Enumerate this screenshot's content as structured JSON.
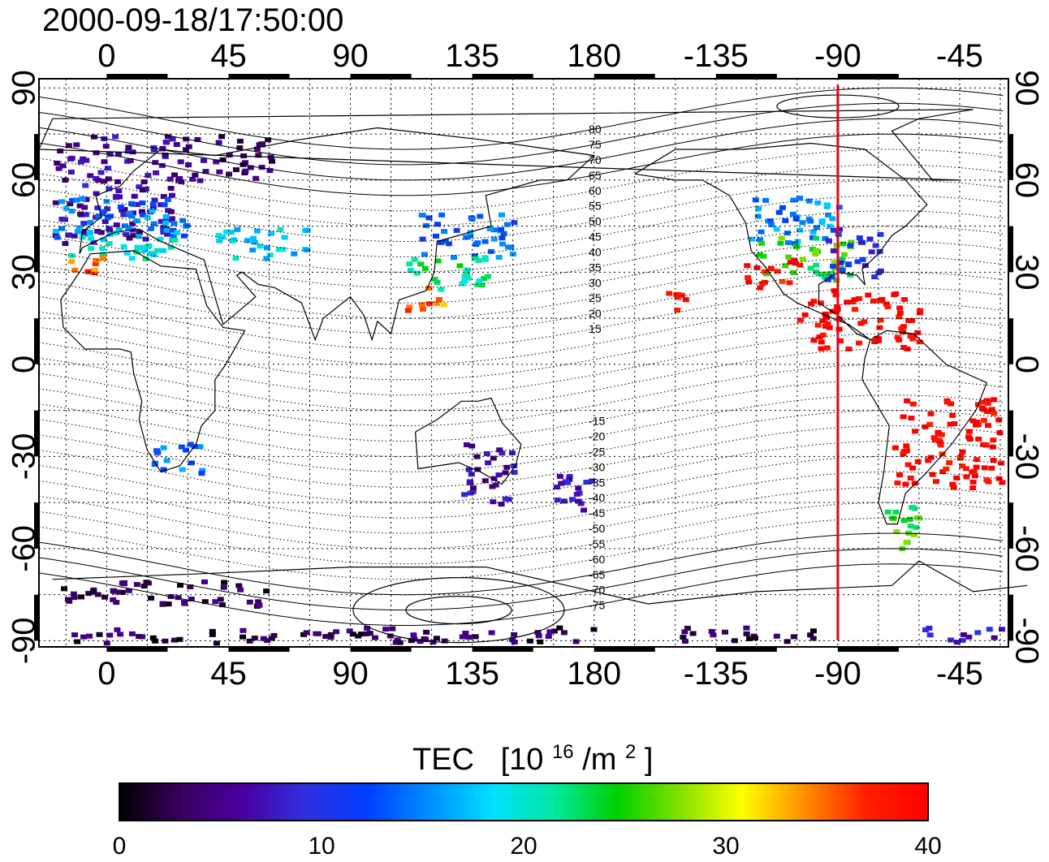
{
  "timestamp": "2000-09-18/17:50:00",
  "map": {
    "top_ticks": [
      "0",
      "45",
      "90",
      "135",
      "180",
      "-135",
      "-90",
      "-45"
    ],
    "bottom_ticks": [
      "0",
      "45",
      "90",
      "135",
      "180",
      "-135",
      "-90",
      "-45"
    ],
    "left_ticks": [
      "90",
      "60",
      "30",
      "0",
      "-30",
      "-60",
      "-90"
    ],
    "right_ticks": [
      "90",
      "60",
      "30",
      "0",
      "-30",
      "-60",
      "-90"
    ],
    "lon_ticks": [
      0,
      45,
      90,
      135,
      180,
      225,
      270,
      315
    ],
    "lat_ticks": [
      90,
      60,
      30,
      0,
      -30,
      -60,
      -90
    ],
    "lon_range": [
      -25,
      333
    ],
    "lat_range": [
      -92,
      93
    ],
    "grid": true,
    "marker_longitude": -90,
    "marker_color": "#e8001a"
  },
  "magnetic_latitude_labels": [
    "80",
    "75",
    "70",
    "65",
    "60",
    "55",
    "50",
    "45",
    "40",
    "35",
    "30",
    "25",
    "20",
    "15",
    "-15",
    "-20",
    "-25",
    "-30",
    "-35",
    "-40",
    "-45",
    "-50",
    "-55",
    "-60",
    "-65",
    "-70",
    "-75"
  ],
  "colorbar": {
    "label_main": "TEC",
    "label_unit_prefix": "[10",
    "label_unit_exp": "16",
    "label_unit_mid": "/m",
    "label_unit_exp2": "2",
    "label_unit_suffix": "]",
    "ticks": [
      "0",
      "10",
      "20",
      "30",
      "40"
    ],
    "min": 0,
    "max": 40,
    "colors": [
      "#000000",
      "#3a0060",
      "#4a00a0",
      "#3030e0",
      "#0040ff",
      "#0090ff",
      "#00e0ff",
      "#00e8a0",
      "#00d000",
      "#80e000",
      "#ffff00",
      "#ff9000",
      "#ff2000",
      "#ff0000"
    ]
  },
  "tec_regions": [
    {
      "lon": [
        -20,
        25
      ],
      "lat": [
        40,
        75
      ],
      "tec": 6
    },
    {
      "lon": [
        -20,
        30
      ],
      "lat": [
        42,
        55
      ],
      "tec": 15
    },
    {
      "lon": [
        -15,
        25
      ],
      "lat": [
        35,
        44
      ],
      "tec": 20
    },
    {
      "lon": [
        -15,
        0
      ],
      "lat": [
        30,
        36
      ],
      "tec": 36
    },
    {
      "lon": [
        25,
        60
      ],
      "lat": [
        60,
        75
      ],
      "tec": 4
    },
    {
      "lon": [
        40,
        75
      ],
      "lat": [
        35,
        45
      ],
      "tec": 18
    },
    {
      "lon": [
        115,
        150
      ],
      "lat": [
        35,
        50
      ],
      "tec": 14
    },
    {
      "lon": [
        110,
        140
      ],
      "lat": [
        25,
        36
      ],
      "tec": 22
    },
    {
      "lon": [
        110,
        125
      ],
      "lat": [
        18,
        26
      ],
      "tec": 35
    },
    {
      "lon": [
        235,
        270
      ],
      "lat": [
        40,
        55
      ],
      "tec": 15
    },
    {
      "lon": [
        240,
        275
      ],
      "lat": [
        28,
        42
      ],
      "tec": 25
    },
    {
      "lon": [
        235,
        255
      ],
      "lat": [
        25,
        35
      ],
      "tec": 39
    },
    {
      "lon": [
        265,
        285
      ],
      "lat": [
        28,
        45
      ],
      "tec": 10
    },
    {
      "lon": [
        255,
        300
      ],
      "lat": [
        5,
        25
      ],
      "tec": 40
    },
    {
      "lon": [
        290,
        330
      ],
      "lat": [
        -40,
        -10
      ],
      "tec": 40
    },
    {
      "lon": [
        285,
        300
      ],
      "lat": [
        -60,
        -45
      ],
      "tec": 25
    },
    {
      "lon": [
        205,
        215
      ],
      "lat": [
        18,
        24
      ],
      "tec": 38
    },
    {
      "lon": [
        15,
        35
      ],
      "lat": [
        -35,
        -25
      ],
      "tec": 14
    },
    {
      "lon": [
        130,
        150
      ],
      "lat": [
        -45,
        -25
      ],
      "tec": 6
    },
    {
      "lon": [
        165,
        180
      ],
      "lat": [
        -50,
        -35
      ],
      "tec": 7
    },
    {
      "lon": [
        210,
        260
      ],
      "lat": [
        -90,
        -85
      ],
      "tec": 3
    },
    {
      "lon": [
        -20,
        180
      ],
      "lat": [
        -90,
        -85
      ],
      "tec": 3
    },
    {
      "lon": [
        -20,
        60
      ],
      "lat": [
        -78,
        -70
      ],
      "tec": 3
    },
    {
      "lon": [
        300,
        330
      ],
      "lat": [
        -90,
        -85
      ],
      "tec": 8
    }
  ]
}
